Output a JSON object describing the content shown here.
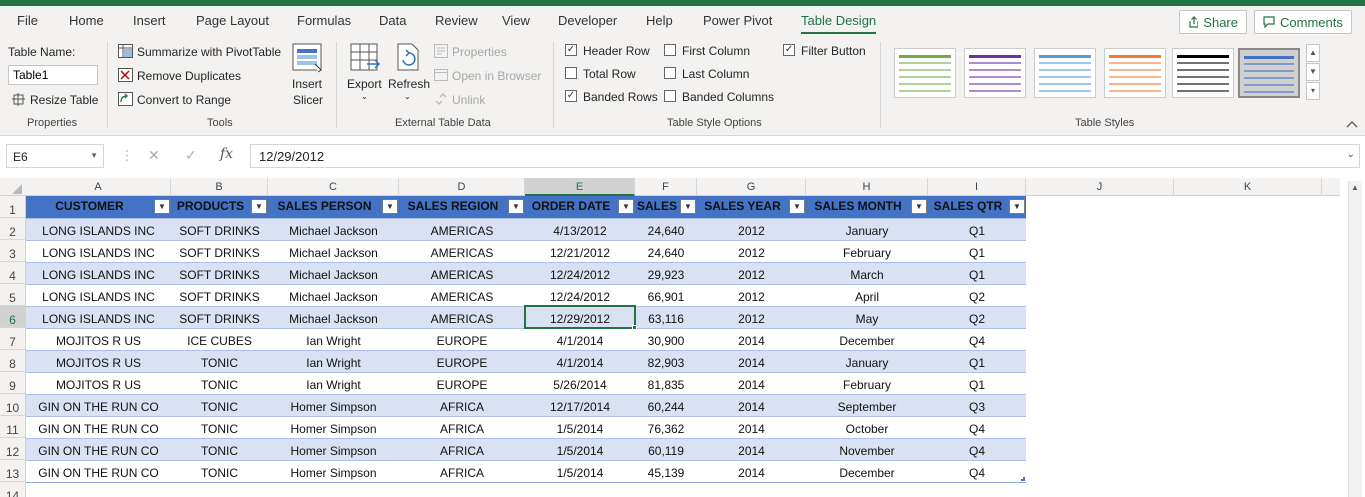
{
  "menu": {
    "tabs": [
      "File",
      "Home",
      "Insert",
      "Page Layout",
      "Formulas",
      "Data",
      "Review",
      "View",
      "Developer",
      "Help",
      "Power Pivot",
      "Table Design"
    ],
    "active_tab": "Table Design",
    "share_label": "Share",
    "comments_label": "Comments"
  },
  "ribbon": {
    "properties": {
      "table_name_label": "Table Name:",
      "table_name_value": "Table1",
      "resize_label": "Resize Table",
      "group_label": "Properties"
    },
    "tools": {
      "pivot_label": "Summarize with PivotTable",
      "remove_dup_label": "Remove Duplicates",
      "convert_label": "Convert to Range",
      "slicer_label_1": "Insert",
      "slicer_label_2": "Slicer",
      "group_label": "Tools"
    },
    "external": {
      "export_label": "Export",
      "refresh_label": "Refresh",
      "properties_label": "Properties",
      "open_browser_label": "Open in Browser",
      "unlink_label": "Unlink",
      "group_label": "External Table Data"
    },
    "style_options": {
      "header_row": {
        "label": "Header Row",
        "checked": true
      },
      "total_row": {
        "label": "Total Row",
        "checked": false
      },
      "banded_rows": {
        "label": "Banded Rows",
        "checked": true
      },
      "first_column": {
        "label": "First Column",
        "checked": false
      },
      "last_column": {
        "label": "Last Column",
        "checked": false
      },
      "banded_columns": {
        "label": "Banded Columns",
        "checked": false
      },
      "filter_button": {
        "label": "Filter Button",
        "checked": true
      },
      "group_label": "Table Style Options"
    },
    "table_styles": {
      "group_label": "Table Styles",
      "swatch_colors": [
        "#70ad47",
        "#7030a0",
        "#5b9bd5",
        "#ed7d31",
        "#000000",
        "#4472c4"
      ]
    }
  },
  "formula_bar": {
    "name_box": "E6",
    "fx_symbol": "fx",
    "value": "12/29/2012"
  },
  "sheet": {
    "columns": [
      "A",
      "B",
      "C",
      "D",
      "E",
      "F",
      "G",
      "H",
      "I",
      "J",
      "K"
    ],
    "selected_column": "E",
    "selected_row": "6",
    "row_numbers": [
      "1",
      "2",
      "3",
      "4",
      "5",
      "6",
      "7",
      "8",
      "9",
      "10",
      "11",
      "12",
      "13",
      "14"
    ],
    "table": {
      "headers": [
        "CUSTOMER",
        "PRODUCTS",
        "SALES PERSON",
        "SALES REGION",
        "ORDER DATE",
        "SALES",
        "SALES YEAR",
        "SALES MONTH",
        "SALES QTR"
      ],
      "rows": [
        [
          "LONG ISLANDS INC",
          "SOFT DRINKS",
          "Michael Jackson",
          "AMERICAS",
          "4/13/2012",
          "24,640",
          "2012",
          "January",
          "Q1"
        ],
        [
          "LONG ISLANDS INC",
          "SOFT DRINKS",
          "Michael Jackson",
          "AMERICAS",
          "12/21/2012",
          "24,640",
          "2012",
          "February",
          "Q1"
        ],
        [
          "LONG ISLANDS INC",
          "SOFT DRINKS",
          "Michael Jackson",
          "AMERICAS",
          "12/24/2012",
          "29,923",
          "2012",
          "March",
          "Q1"
        ],
        [
          "LONG ISLANDS INC",
          "SOFT DRINKS",
          "Michael Jackson",
          "AMERICAS",
          "12/24/2012",
          "66,901",
          "2012",
          "April",
          "Q2"
        ],
        [
          "LONG ISLANDS INC",
          "SOFT DRINKS",
          "Michael Jackson",
          "AMERICAS",
          "12/29/2012",
          "63,116",
          "2012",
          "May",
          "Q2"
        ],
        [
          "MOJITOS R US",
          "ICE CUBES",
          "Ian Wright",
          "EUROPE",
          "4/1/2014",
          "30,900",
          "2014",
          "December",
          "Q4"
        ],
        [
          "MOJITOS R US",
          "TONIC",
          "Ian Wright",
          "EUROPE",
          "4/1/2014",
          "82,903",
          "2014",
          "January",
          "Q1"
        ],
        [
          "MOJITOS R US",
          "TONIC",
          "Ian Wright",
          "EUROPE",
          "5/26/2014",
          "81,835",
          "2014",
          "February",
          "Q1"
        ],
        [
          "GIN ON THE RUN CO",
          "TONIC",
          "Homer Simpson",
          "AFRICA",
          "12/17/2014",
          "60,244",
          "2014",
          "September",
          "Q3"
        ],
        [
          "GIN ON THE RUN CO",
          "TONIC",
          "Homer Simpson",
          "AFRICA",
          "1/5/2014",
          "76,362",
          "2014",
          "October",
          "Q4"
        ],
        [
          "GIN ON THE RUN CO",
          "TONIC",
          "Homer Simpson",
          "AFRICA",
          "1/5/2014",
          "60,119",
          "2014",
          "November",
          "Q4"
        ],
        [
          "GIN ON THE RUN CO",
          "TONIC",
          "Homer Simpson",
          "AFRICA",
          "1/5/2014",
          "45,139",
          "2014",
          "December",
          "Q4"
        ]
      ]
    },
    "colors": {
      "header_bg": "#4472c4",
      "band_bg": "#d9e1f2",
      "accent": "#217346"
    }
  }
}
